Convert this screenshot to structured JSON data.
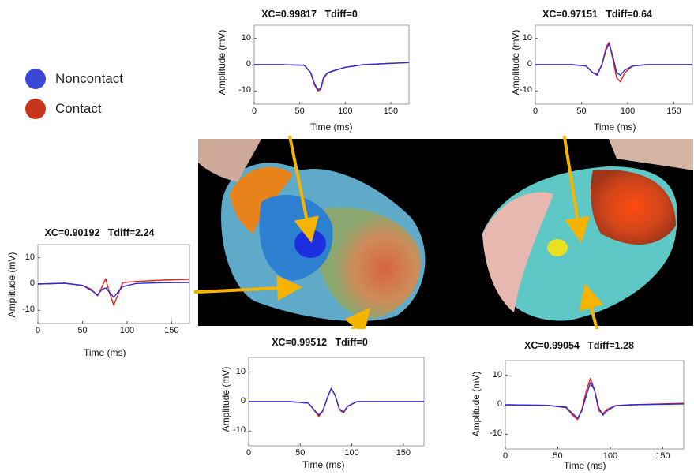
{
  "legend": {
    "items": [
      {
        "label": "Noncontact",
        "color": "#3b47d6"
      },
      {
        "label": "Contact",
        "color": "#c7361a"
      }
    ]
  },
  "colors": {
    "noncontact": "#2b2bd9",
    "contact": "#e8201e",
    "arrow": "#f6b400"
  },
  "chart_data": [
    {
      "type": "line",
      "title": "XC=0.99817   Tdiff=0",
      "xlabel": "Time (ms)",
      "ylabel": "Amplitude (mV)",
      "xlim": [
        0,
        170
      ],
      "ylim": [
        -15,
        15
      ],
      "xticks": [
        0,
        50,
        100,
        150
      ],
      "yticks": [
        10,
        0,
        -10
      ],
      "series": [
        {
          "name": "Noncontact",
          "x": [
            0,
            30,
            55,
            62,
            66,
            70,
            73,
            76,
            80,
            85,
            100,
            120,
            150,
            170
          ],
          "y": [
            0,
            0,
            -0.2,
            -3,
            -7,
            -9.5,
            -9,
            -5,
            -3.2,
            -2.5,
            -1,
            0,
            0.5,
            0.8
          ]
        },
        {
          "name": "Contact",
          "x": [
            0,
            30,
            55,
            62,
            66,
            70,
            73,
            76,
            80,
            85,
            100,
            120,
            150,
            170
          ],
          "y": [
            0,
            0,
            -0.2,
            -3,
            -7.5,
            -10,
            -9.5,
            -5.5,
            -3.4,
            -2.6,
            -1,
            0,
            0.5,
            0.8
          ]
        }
      ]
    },
    {
      "type": "line",
      "title": "XC=0.97151   Tdiff=0.64",
      "xlabel": "Time (ms)",
      "ylabel": "Amplitude (mV)",
      "xlim": [
        0,
        170
      ],
      "ylim": [
        -15,
        15
      ],
      "xticks": [
        0,
        50,
        100,
        150
      ],
      "yticks": [
        10,
        0,
        -10
      ],
      "series": [
        {
          "name": "Noncontact",
          "x": [
            0,
            40,
            55,
            62,
            67,
            72,
            77,
            80,
            84,
            88,
            92,
            97,
            105,
            120,
            170
          ],
          "y": [
            0,
            0,
            -0.5,
            -3,
            -4,
            0,
            6,
            8,
            3,
            -3,
            -4,
            -2,
            -0.5,
            0,
            0
          ]
        },
        {
          "name": "Contact",
          "x": [
            0,
            40,
            55,
            62,
            67,
            72,
            77,
            80,
            84,
            88,
            92,
            97,
            105,
            120,
            170
          ],
          "y": [
            0,
            0,
            -0.5,
            -3,
            -3.5,
            0,
            7,
            8.5,
            2,
            -5,
            -6.5,
            -3,
            -0.5,
            0,
            0
          ]
        }
      ]
    },
    {
      "type": "line",
      "title": "XC=0.90192   Tdiff=2.24",
      "xlabel": "Time (ms)",
      "ylabel": "Amplitude (mV)",
      "xlim": [
        0,
        170
      ],
      "ylim": [
        -15,
        15
      ],
      "xticks": [
        0,
        50,
        100,
        150
      ],
      "yticks": [
        10,
        0,
        -10
      ],
      "series": [
        {
          "name": "Noncontact",
          "x": [
            0,
            30,
            50,
            60,
            67,
            72,
            76,
            80,
            85,
            90,
            95,
            110,
            140,
            170
          ],
          "y": [
            0,
            0.3,
            -0.5,
            -2.5,
            -4,
            -2,
            -1.5,
            -3,
            -5,
            -3,
            -1,
            0.2,
            0.5,
            0.6
          ]
        },
        {
          "name": "Contact",
          "x": [
            0,
            30,
            50,
            60,
            67,
            72,
            76,
            80,
            85,
            90,
            95,
            110,
            140,
            170
          ],
          "y": [
            0,
            0.3,
            -0.5,
            -2,
            -4.5,
            -1,
            2,
            -3,
            -8,
            -4,
            0.5,
            1,
            1.5,
            1.8
          ]
        }
      ]
    },
    {
      "type": "line",
      "title": "XC=0.99512   Tdiff=0",
      "xlabel": "Time (ms)",
      "ylabel": "Amplitude (mV)",
      "xlim": [
        0,
        170
      ],
      "ylim": [
        -15,
        15
      ],
      "xticks": [
        0,
        50,
        100,
        150
      ],
      "yticks": [
        10,
        0,
        -10
      ],
      "series": [
        {
          "name": "Noncontact",
          "x": [
            0,
            40,
            58,
            64,
            68,
            72,
            76,
            80,
            84,
            88,
            92,
            96,
            105,
            120,
            170
          ],
          "y": [
            0,
            0,
            -0.5,
            -3,
            -4.5,
            -3,
            1,
            4.5,
            2,
            -2.5,
            -3.5,
            -1.5,
            0,
            0,
            0
          ]
        },
        {
          "name": "Contact",
          "x": [
            0,
            40,
            58,
            64,
            68,
            72,
            76,
            80,
            84,
            88,
            92,
            96,
            105,
            120,
            170
          ],
          "y": [
            0,
            0,
            -0.5,
            -3.2,
            -5,
            -3.2,
            1,
            4.5,
            2,
            -2.7,
            -3.8,
            -1.6,
            0,
            0,
            0
          ]
        }
      ]
    },
    {
      "type": "line",
      "title": "XC=0.99054   Tdiff=1.28",
      "xlabel": "Time (ms)",
      "ylabel": "Amplitude (mV)",
      "xlim": [
        0,
        170
      ],
      "ylim": [
        -15,
        15
      ],
      "xticks": [
        0,
        50,
        100,
        150
      ],
      "yticks": [
        10,
        0,
        -10
      ],
      "series": [
        {
          "name": "Noncontact",
          "x": [
            0,
            40,
            58,
            64,
            69,
            73,
            77,
            81,
            85,
            89,
            93,
            97,
            105,
            120,
            170
          ],
          "y": [
            0,
            -0.2,
            -0.8,
            -3,
            -4.5,
            -2,
            3,
            7.5,
            5,
            -1,
            -3.5,
            -2,
            -0.3,
            0,
            0.3
          ]
        },
        {
          "name": "Contact",
          "x": [
            0,
            40,
            58,
            64,
            69,
            73,
            77,
            81,
            85,
            89,
            93,
            97,
            105,
            120,
            170
          ],
          "y": [
            0,
            -0.2,
            -1,
            -3.5,
            -5,
            -1.5,
            4.5,
            9,
            5,
            -2,
            -3,
            -1.5,
            -0.3,
            0,
            0.5
          ]
        }
      ]
    }
  ]
}
